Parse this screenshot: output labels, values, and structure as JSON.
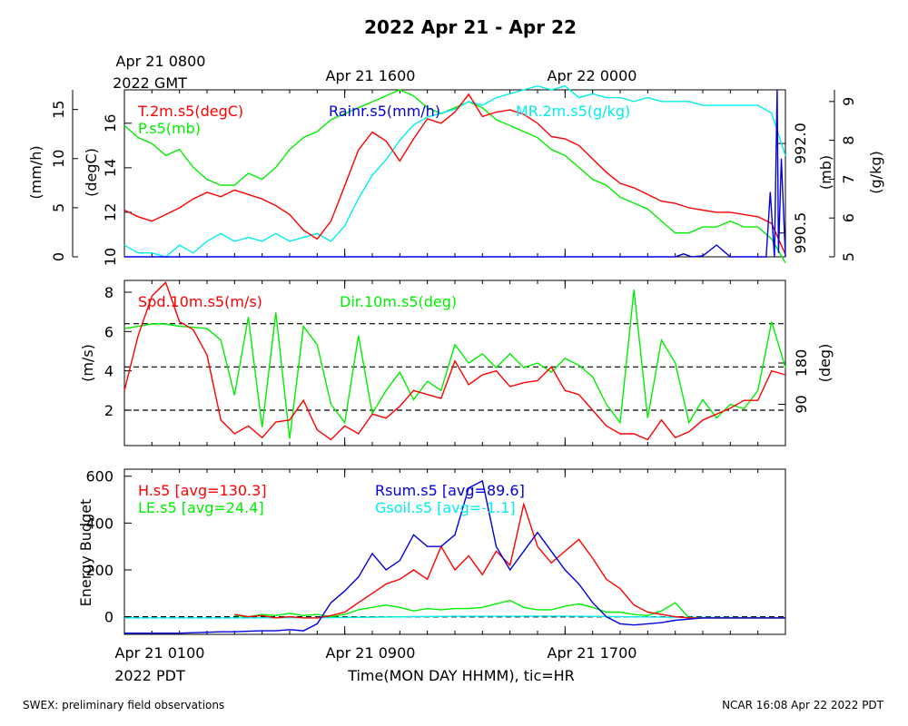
{
  "page": {
    "title": "2022 Apr 21 - Apr 22",
    "footer_left": "SWEX: preliminary field observations",
    "footer_right": "NCAR 16:08 Apr 22 2022 PDT"
  },
  "top_axis": {
    "labels": [
      "Apr 21 0800",
      "Apr 21 1600",
      "Apr 22 0000"
    ],
    "year_label": "2022 GMT"
  },
  "bottom_axis": {
    "labels": [
      "Apr 21 0100",
      "Apr 21 0900",
      "Apr 21 1700"
    ],
    "year_label": "2022 PDT",
    "xlabel": "Time(MON DAY HHMM), tic=HR"
  },
  "colors": {
    "red": "#ff0000",
    "green": "#00ee00",
    "blue": "#0000dd",
    "cyan": "#00eeee",
    "black": "#000000"
  },
  "chart_data": [
    {
      "type": "line",
      "panel": "top",
      "x_hours_from": "Apr 21 0100 PDT",
      "x_range": [
        0,
        24
      ],
      "axes": {
        "left_outer": {
          "label": "(mm/h)",
          "ticks": [
            "0",
            "5",
            "10",
            "15"
          ],
          "range": [
            0,
            17
          ]
        },
        "left_inner": {
          "label": "(degC)",
          "ticks": [
            "10",
            "12",
            "14",
            "16"
          ],
          "range": [
            10,
            17.5
          ]
        },
        "right_inner": {
          "label": "(mb)",
          "ticks": [
            "990.5",
            "992.0"
          ],
          "range": [
            990.1,
            992.9
          ]
        },
        "right_outer": {
          "label": "(g/kg)",
          "ticks": [
            "5",
            "6",
            "7",
            "8",
            "9"
          ],
          "range": [
            5,
            9.3
          ]
        }
      },
      "series": [
        {
          "name": "T.2m.s5(degC)",
          "color": "red",
          "axis": "left_inner",
          "x": [
            0,
            0.5,
            1,
            1.5,
            2,
            2.5,
            3,
            3.5,
            4,
            4.5,
            5,
            5.5,
            6,
            6.5,
            7,
            7.5,
            8,
            8.5,
            9,
            9.5,
            10,
            10.5,
            11,
            11.5,
            12,
            12.5,
            13,
            13.5,
            14,
            14.5,
            15,
            15.5,
            16,
            16.5,
            17,
            17.5,
            18,
            18.5,
            19,
            19.5,
            20,
            20.5,
            21,
            21.5,
            22,
            22.5,
            23,
            23.5,
            24
          ],
          "y": [
            12.1,
            11.8,
            11.6,
            11.9,
            12.2,
            12.6,
            12.9,
            12.7,
            13.0,
            12.8,
            12.6,
            12.3,
            11.9,
            11.2,
            10.8,
            11.6,
            13.2,
            14.8,
            15.6,
            15.2,
            14.3,
            15.3,
            16.2,
            16.0,
            16.5,
            17.3,
            16.3,
            16.5,
            16.6,
            16.4,
            16.0,
            15.4,
            15.3,
            15.0,
            14.4,
            13.8,
            13.3,
            13.1,
            12.8,
            12.5,
            12.4,
            12.2,
            12.1,
            12.0,
            12.0,
            11.9,
            11.8,
            11.5,
            10.1
          ]
        },
        {
          "name": "Rainr.s5(mm/h)",
          "color": "blue",
          "axis": "left_outer",
          "x": [
            0,
            20,
            20.3,
            20.6,
            21,
            21.5,
            22,
            22.5,
            23,
            23.3,
            23.45,
            23.6,
            23.7,
            23.75,
            23.85,
            24
          ],
          "y": [
            0,
            0,
            0.3,
            0,
            0.1,
            1.2,
            0,
            0,
            0,
            0,
            6.6,
            0,
            17.0,
            0.4,
            10.0,
            0
          ]
        },
        {
          "name": "MR.2m.s5(g/kg)",
          "color": "cyan",
          "axis": "right_outer",
          "x": [
            0,
            0.5,
            1,
            1.5,
            2,
            2.5,
            3,
            3.5,
            4,
            4.5,
            5,
            5.5,
            6,
            6.5,
            7,
            7.5,
            8,
            8.5,
            9,
            9.5,
            10,
            10.5,
            11,
            11.5,
            12,
            12.5,
            13,
            13.5,
            14,
            14.5,
            15,
            15.5,
            16,
            16.5,
            17,
            17.5,
            18,
            18.5,
            19,
            19.5,
            20,
            20.5,
            21,
            21.5,
            22,
            22.5,
            23,
            23.5,
            24
          ],
          "y": [
            5.3,
            5.1,
            5.1,
            5.0,
            5.3,
            5.1,
            5.4,
            5.6,
            5.4,
            5.5,
            5.4,
            5.6,
            5.4,
            5.5,
            5.6,
            5.4,
            5.8,
            6.5,
            7.1,
            7.5,
            8.0,
            8.4,
            8.6,
            8.7,
            8.8,
            9.0,
            8.9,
            9.1,
            9.2,
            9.3,
            9.4,
            9.3,
            9.4,
            9.1,
            9.2,
            9.1,
            9.1,
            9.0,
            9.1,
            9.0,
            9.0,
            9.0,
            8.9,
            8.9,
            8.9,
            8.9,
            8.9,
            8.7,
            7.6
          ]
        },
        {
          "name": "P.s5(mb)",
          "color": "green",
          "axis": "right_inner",
          "x": [
            0,
            0.5,
            1,
            1.5,
            2,
            2.5,
            3,
            3.5,
            4,
            4.5,
            5,
            5.5,
            6,
            6.5,
            7,
            7.5,
            8,
            8.5,
            9,
            9.5,
            10,
            10.5,
            11,
            11.5,
            12,
            12.5,
            13,
            13.5,
            14,
            14.5,
            15,
            15.5,
            16,
            16.5,
            17,
            17.5,
            18,
            18.5,
            19,
            19.5,
            20,
            20.5,
            21,
            21.5,
            22,
            22.5,
            23,
            23.5,
            24
          ],
          "y": [
            992.3,
            992.1,
            992.0,
            991.8,
            991.9,
            991.6,
            991.4,
            991.3,
            991.3,
            991.5,
            991.4,
            991.6,
            991.9,
            992.1,
            992.2,
            992.4,
            992.5,
            992.6,
            992.7,
            992.8,
            992.9,
            992.8,
            992.6,
            992.5,
            992.6,
            992.7,
            992.6,
            992.4,
            992.3,
            992.2,
            992.1,
            991.9,
            991.8,
            991.6,
            991.4,
            991.3,
            991.1,
            991.0,
            990.9,
            990.7,
            990.5,
            990.5,
            990.6,
            990.6,
            990.7,
            990.6,
            990.6,
            990.4,
            990.0
          ]
        }
      ]
    },
    {
      "type": "line",
      "panel": "middle",
      "x_hours_from": "Apr 21 0100 PDT",
      "x_range": [
        0,
        24
      ],
      "axes": {
        "left": {
          "label": "(m/s)",
          "ticks": [
            "2",
            "4",
            "6",
            "8"
          ],
          "range": [
            0.2,
            8.6
          ]
        },
        "right": {
          "label": "(deg)",
          "ticks": [
            "90",
            "180"
          ],
          "range": [
            0,
            360
          ]
        }
      },
      "reference_lines_ms": [
        2.0,
        4.2,
        6.4
      ],
      "series": [
        {
          "name": "Spd.10m.s5(m/s)",
          "color": "red",
          "axis": "left",
          "x": [
            0,
            0.5,
            1,
            1.5,
            2,
            2.5,
            3,
            3.5,
            4,
            4.5,
            5,
            5.5,
            6,
            6.5,
            7,
            7.5,
            8,
            8.5,
            9,
            9.5,
            10,
            10.5,
            11,
            11.5,
            12,
            12.5,
            13,
            13.5,
            14,
            14.5,
            15,
            15.5,
            16,
            16.5,
            17,
            17.5,
            18,
            18.5,
            19,
            19.5,
            20,
            20.5,
            21,
            21.5,
            22,
            22.5,
            23,
            23.5,
            24
          ],
          "y": [
            3.0,
            5.8,
            7.8,
            8.5,
            6.5,
            6.1,
            4.8,
            1.5,
            0.8,
            1.2,
            0.6,
            1.4,
            1.5,
            2.5,
            1.0,
            0.5,
            1.2,
            0.8,
            1.8,
            1.6,
            2.2,
            3.0,
            2.8,
            2.6,
            4.5,
            3.3,
            3.8,
            4.0,
            3.2,
            3.4,
            3.5,
            4.2,
            3.0,
            2.8,
            2.0,
            1.2,
            0.8,
            0.8,
            0.5,
            1.5,
            0.6,
            0.9,
            1.5,
            1.8,
            2.1,
            2.5,
            2.5,
            4.0,
            3.8
          ]
        },
        {
          "name": "Dir.10m.s5(deg)",
          "color": "green",
          "axis": "right",
          "x": [
            0,
            0.5,
            1,
            1.5,
            2,
            2.5,
            3,
            3.5,
            4,
            4.5,
            5,
            5.5,
            6,
            6.5,
            7,
            7.5,
            8,
            8.5,
            9,
            9.5,
            10,
            10.5,
            11,
            11.5,
            12,
            12.5,
            13,
            13.5,
            14,
            14.5,
            15,
            15.5,
            16,
            16.5,
            17,
            17.5,
            18,
            18.5,
            19,
            19.5,
            20,
            20.5,
            21,
            21.5,
            22,
            22.5,
            23,
            23.5,
            24
          ],
          "y": [
            255,
            260,
            265,
            265,
            260,
            258,
            255,
            230,
            110,
            280,
            40,
            290,
            15,
            260,
            220,
            90,
            50,
            240,
            70,
            120,
            160,
            100,
            140,
            120,
            220,
            180,
            200,
            170,
            200,
            170,
            180,
            160,
            190,
            175,
            150,
            90,
            50,
            340,
            60,
            230,
            180,
            50,
            100,
            60,
            90,
            80,
            120,
            270,
            170
          ]
        }
      ]
    },
    {
      "type": "line",
      "panel": "bottom",
      "x_hours_from": "Apr 21 0100 PDT",
      "x_range": [
        0,
        24
      ],
      "axes": {
        "left": {
          "label": "Energy Budget",
          "ticks": [
            "0",
            "200",
            "400",
            "600"
          ],
          "range": [
            -75,
            630
          ]
        }
      },
      "reference_lines": [
        0
      ],
      "series": [
        {
          "name": "H.s5 [avg=130.3]",
          "color": "red",
          "x": [
            4,
            4.5,
            5,
            5.5,
            6,
            6.5,
            7,
            7.5,
            8,
            8.5,
            9,
            9.5,
            10,
            10.5,
            11,
            11.5,
            12,
            12.5,
            13,
            13.5,
            14,
            14.5,
            15,
            15.5,
            16,
            16.5,
            17,
            17.5,
            18,
            18.5,
            19,
            19.5,
            20,
            20.5,
            21,
            21.5,
            22,
            22.5,
            23,
            23.5,
            24
          ],
          "y": [
            10,
            0,
            5,
            -5,
            0,
            -5,
            -5,
            5,
            20,
            60,
            100,
            140,
            160,
            200,
            160,
            300,
            200,
            260,
            180,
            280,
            220,
            480,
            300,
            230,
            280,
            330,
            250,
            160,
            120,
            50,
            20,
            10,
            0,
            -5,
            -5,
            -5,
            -5,
            -5,
            -5,
            -5,
            -5
          ]
        },
        {
          "name": "Rsum.s5 [avg=89.6]",
          "color": "blue",
          "x": [
            0,
            0.5,
            1,
            1.5,
            2,
            2.5,
            3,
            3.5,
            4,
            4.5,
            5,
            5.5,
            6,
            6.5,
            7,
            7.5,
            8,
            8.5,
            9,
            9.5,
            10,
            10.5,
            11,
            11.5,
            12,
            12.5,
            13,
            13.5,
            14,
            14.5,
            15,
            15.5,
            16,
            16.5,
            17,
            17.5,
            18,
            18.5,
            19,
            19.5,
            20,
            20.5,
            21,
            21.5,
            22,
            22.5,
            23,
            23.5,
            24
          ],
          "y": [
            -70,
            -70,
            -70,
            -70,
            -70,
            -68,
            -66,
            -64,
            -64,
            -62,
            -60,
            -60,
            -55,
            -60,
            -30,
            60,
            110,
            170,
            270,
            200,
            240,
            350,
            300,
            300,
            350,
            550,
            580,
            300,
            200,
            280,
            360,
            280,
            200,
            140,
            60,
            0,
            -30,
            -35,
            -30,
            -25,
            -15,
            -10,
            -5,
            -5,
            -5,
            -5,
            -5,
            -5,
            -5
          ]
        },
        {
          "name": "LE.s5 [avg=24.4]",
          "color": "green",
          "x": [
            4,
            4.5,
            5,
            5.5,
            6,
            6.5,
            7,
            7.5,
            8,
            8.5,
            9,
            9.5,
            10,
            10.5,
            11,
            11.5,
            12,
            12.5,
            13,
            13.5,
            14,
            14.5,
            15,
            15.5,
            16,
            16.5,
            17,
            17.5,
            18,
            18.5,
            19,
            19.5,
            20,
            20.5,
            21,
            21.5,
            22,
            22.5,
            23,
            23.5,
            24
          ],
          "y": [
            5,
            0,
            10,
            5,
            15,
            5,
            10,
            0,
            10,
            30,
            40,
            50,
            40,
            25,
            35,
            30,
            35,
            35,
            40,
            55,
            70,
            40,
            30,
            30,
            45,
            55,
            40,
            20,
            20,
            10,
            5,
            25,
            60,
            -5,
            -5,
            -5,
            -5,
            -5,
            -5,
            -5,
            -5
          ]
        },
        {
          "name": "Gsoil.s5 [avg=-1.1]",
          "color": "cyan",
          "x": [
            0,
            4,
            8,
            12,
            16,
            20,
            24
          ],
          "y": [
            -5,
            -5,
            -3,
            2,
            3,
            -2,
            -4
          ]
        }
      ]
    }
  ],
  "legends": {
    "top": [
      {
        "text": "T.2m.s5(degC)",
        "color": "red"
      },
      {
        "text": "P.s5(mb)",
        "color": "green"
      },
      {
        "text": "Rainr.s5(mm/h)",
        "color": "blue"
      },
      {
        "text": "MR.2m.s5(g/kg)",
        "color": "cyan"
      }
    ],
    "middle": [
      {
        "text": "Spd.10m.s5(m/s)",
        "color": "red"
      },
      {
        "text": "Dir.10m.s5(deg)",
        "color": "green"
      }
    ],
    "bottom": [
      {
        "text": "H.s5 [avg=130.3]",
        "color": "red"
      },
      {
        "text": "LE.s5 [avg=24.4]",
        "color": "green"
      },
      {
        "text": "Rsum.s5 [avg=89.6]",
        "color": "blue"
      },
      {
        "text": "Gsoil.s5 [avg=-1.1]",
        "color": "cyan"
      }
    ]
  }
}
